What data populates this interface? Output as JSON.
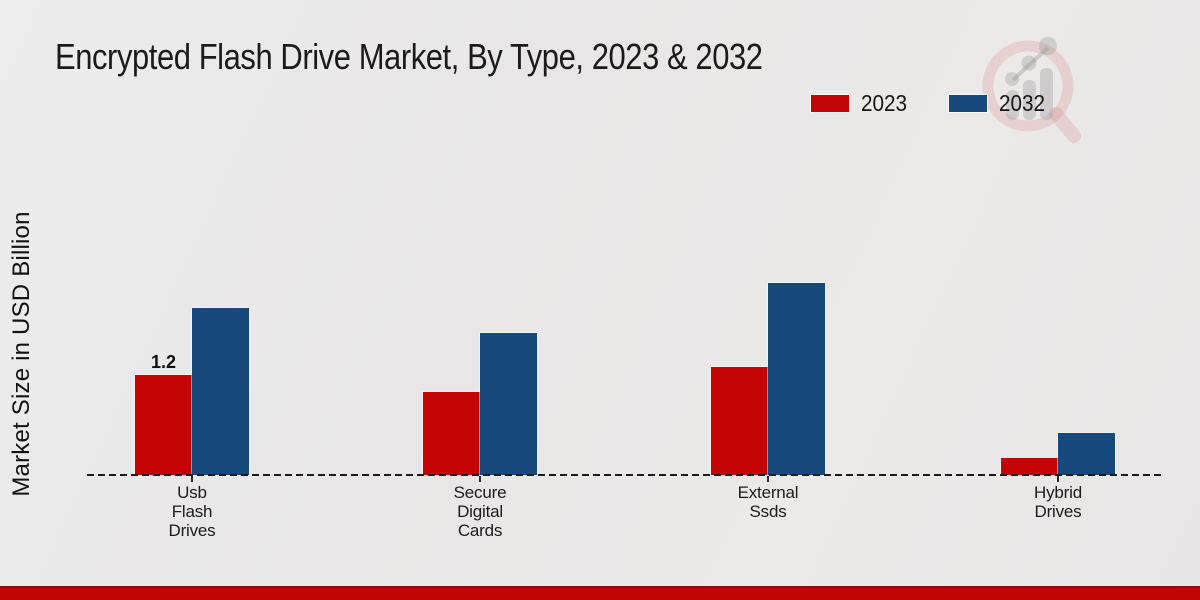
{
  "chart_data": {
    "type": "bar",
    "title": "Encrypted Flash Drive Market, By Type, 2023 & 2032",
    "ylabel": "Market Size in USD Billion",
    "xlabel": "",
    "categories": [
      "Usb Flash Drives",
      "Secure Digital Cards",
      "External Ssds",
      "Hybrid Drives"
    ],
    "series": [
      {
        "name": "2023",
        "color": "#c50505",
        "values": [
          1.2,
          1.0,
          1.3,
          0.2
        ]
      },
      {
        "name": "2032",
        "color": "#17497d",
        "values": [
          2.0,
          1.7,
          2.3,
          0.5
        ]
      }
    ],
    "data_labels": [
      {
        "series_index": 0,
        "category_index": 0,
        "text": "1.2"
      }
    ],
    "ylim": [
      0,
      2.5
    ],
    "grid": false,
    "legend_position": "top-right",
    "baseline_style": "dashed"
  },
  "watermark": {
    "icon_name": "magnifier-bar-chart-logo"
  },
  "footer": {
    "stripe_color": "#c10404",
    "stripe_edge_color": "#8e0b0b"
  }
}
